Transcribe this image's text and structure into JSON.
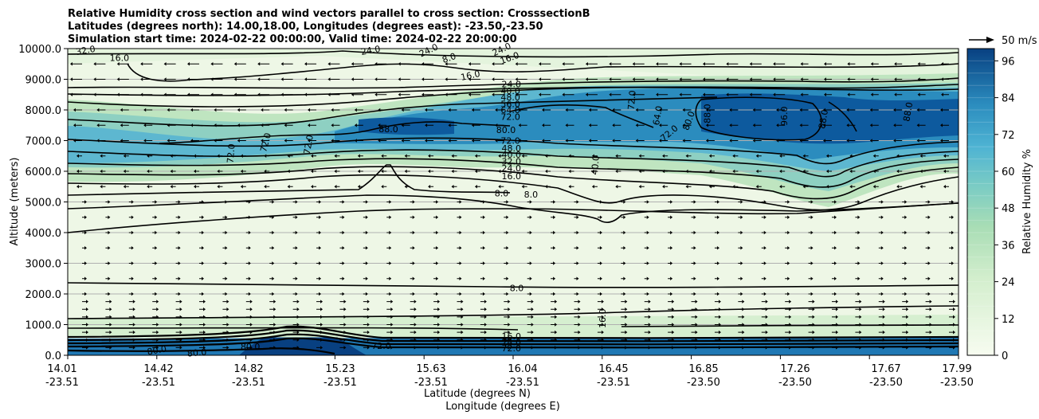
{
  "chart_data": {
    "type": "contourf",
    "title_lines": [
      "Relative Humidity cross section and wind vectors parallel to cross section: CrosssectionB",
      "Latitudes (degrees north): 14.00,18.00, Longitudes (degrees east): -23.50,-23.50",
      "Simulation start time: 2024-02-22 00:00:00, Valid time: 2024-02-22 20:00:00"
    ],
    "xlabel_lat": "Latitude (degrees N)",
    "xlabel_lon": "Longitude (degrees E)",
    "ylabel": "Altitude (meters)",
    "x_ticks": [
      {
        "lat": "14.01",
        "lon": "-23.51"
      },
      {
        "lat": "14.42",
        "lon": "-23.51"
      },
      {
        "lat": "14.82",
        "lon": "-23.51"
      },
      {
        "lat": "15.23",
        "lon": "-23.51"
      },
      {
        "lat": "15.63",
        "lon": "-23.51"
      },
      {
        "lat": "16.04",
        "lon": "-23.51"
      },
      {
        "lat": "16.45",
        "lon": "-23.51"
      },
      {
        "lat": "16.85",
        "lon": "-23.50"
      },
      {
        "lat": "17.26",
        "lon": "-23.50"
      },
      {
        "lat": "17.67",
        "lon": "-23.50"
      },
      {
        "lat": "17.99",
        "lon": "-23.50"
      }
    ],
    "y_ticks": [
      "0.0",
      "1000.0",
      "2000.0",
      "3000.0",
      "4000.0",
      "5000.0",
      "6000.0",
      "7000.0",
      "8000.0",
      "9000.0",
      "10000.0"
    ],
    "ylim": [
      0,
      10000
    ],
    "grid": "horizontal",
    "colorbar": {
      "label": "Relative Humidity %",
      "ticks": [
        "0",
        "12",
        "24",
        "36",
        "48",
        "60",
        "72",
        "84",
        "96"
      ],
      "range": [
        0,
        100
      ],
      "levels": 25,
      "colormap": "GnBu",
      "low_color": "#f7fcf0",
      "high_color": "#084081"
    },
    "quiver_key": "50 m/s",
    "contour_levels_labeled": [
      "8.0",
      "16.0",
      "24.0",
      "32.0",
      "40.0",
      "48.0",
      "64.0",
      "72.0",
      "80.0",
      "88.0",
      "96.0"
    ],
    "contour_labels": [
      {
        "text": "16.0",
        "xf": 0.058,
        "alt": 9700,
        "rot": 0
      },
      {
        "text": "32.0",
        "xf": 0.02,
        "alt": 9950,
        "rot": 10
      },
      {
        "text": "24.0",
        "xf": 0.34,
        "alt": 9950,
        "rot": 10
      },
      {
        "text": "24.0",
        "xf": 0.405,
        "alt": 9950,
        "rot": 25
      },
      {
        "text": "8.0",
        "xf": 0.428,
        "alt": 9700,
        "rot": 20
      },
      {
        "text": "24.0",
        "xf": 0.487,
        "alt": 9980,
        "rot": 25
      },
      {
        "text": "16.0",
        "xf": 0.496,
        "alt": 9700,
        "rot": 20
      },
      {
        "text": "16.0",
        "xf": 0.452,
        "alt": 9130,
        "rot": 12
      },
      {
        "text": "24.0",
        "xf": 0.498,
        "alt": 8850,
        "rot": 0
      },
      {
        "text": "40.0",
        "xf": 0.497,
        "alt": 8620,
        "rot": 0
      },
      {
        "text": "48.0",
        "xf": 0.497,
        "alt": 8420,
        "rot": 0
      },
      {
        "text": "56.0",
        "xf": 0.497,
        "alt": 8200,
        "rot": 0
      },
      {
        "text": "64.0",
        "xf": 0.497,
        "alt": 8000,
        "rot": 0
      },
      {
        "text": "72.0",
        "xf": 0.497,
        "alt": 7780,
        "rot": 0
      },
      {
        "text": "80.0",
        "xf": 0.492,
        "alt": 7350,
        "rot": 0
      },
      {
        "text": "72.0",
        "xf": 0.497,
        "alt": 7000,
        "rot": 0
      },
      {
        "text": "48.0",
        "xf": 0.498,
        "alt": 6750,
        "rot": 0
      },
      {
        "text": "40.0",
        "xf": 0.498,
        "alt": 6550,
        "rot": 0
      },
      {
        "text": "32.0",
        "xf": 0.498,
        "alt": 6330,
        "rot": 0
      },
      {
        "text": "24.0",
        "xf": 0.498,
        "alt": 6100,
        "rot": 0
      },
      {
        "text": "16.0",
        "xf": 0.498,
        "alt": 5850,
        "rot": 0
      },
      {
        "text": "8.0",
        "xf": 0.487,
        "alt": 5280,
        "rot": 0
      },
      {
        "text": "8.0",
        "xf": 0.52,
        "alt": 5250,
        "rot": 0
      },
      {
        "text": "88.0",
        "xf": 0.36,
        "alt": 7380,
        "rot": 0
      },
      {
        "text": "72.0",
        "xf": 0.222,
        "alt": 6940,
        "rot": 75
      },
      {
        "text": "72.0",
        "xf": 0.27,
        "alt": 6870,
        "rot": 80
      },
      {
        "text": "72.0",
        "xf": 0.183,
        "alt": 6580,
        "rot": 85
      },
      {
        "text": "72.0",
        "xf": 0.633,
        "alt": 8320,
        "rot": 85
      },
      {
        "text": "64.0",
        "xf": 0.662,
        "alt": 7820,
        "rot": 80
      },
      {
        "text": "72.0",
        "xf": 0.675,
        "alt": 7250,
        "rot": 40
      },
      {
        "text": "80.0",
        "xf": 0.697,
        "alt": 7650,
        "rot": 70
      },
      {
        "text": "88.0",
        "xf": 0.718,
        "alt": 7880,
        "rot": 90
      },
      {
        "text": "96.0",
        "xf": 0.804,
        "alt": 7800,
        "rot": 90
      },
      {
        "text": "88.0",
        "xf": 0.848,
        "alt": 7700,
        "rot": 80
      },
      {
        "text": "88.0",
        "xf": 0.943,
        "alt": 7940,
        "rot": 80
      },
      {
        "text": "40.0",
        "xf": 0.592,
        "alt": 6200,
        "rot": 85
      },
      {
        "text": "16.0",
        "xf": 0.6,
        "alt": 1200,
        "rot": 90
      },
      {
        "text": "8.0",
        "xf": 0.504,
        "alt": 2200,
        "rot": 0
      },
      {
        "text": "80.0",
        "xf": 0.1,
        "alt": 170,
        "rot": 10
      },
      {
        "text": "80.0",
        "xf": 0.145,
        "alt": 90,
        "rot": 5
      },
      {
        "text": "80.0",
        "xf": 0.205,
        "alt": 290,
        "rot": 0
      },
      {
        "text": "72.0",
        "xf": 0.352,
        "alt": 310,
        "rot": 0
      },
      {
        "text": "16.0",
        "xf": 0.498,
        "alt": 620,
        "rot": 0
      },
      {
        "text": "24.0",
        "xf": 0.498,
        "alt": 430,
        "rot": 0
      },
      {
        "text": "72.0",
        "xf": 0.498,
        "alt": 230,
        "rot": 0
      }
    ]
  }
}
